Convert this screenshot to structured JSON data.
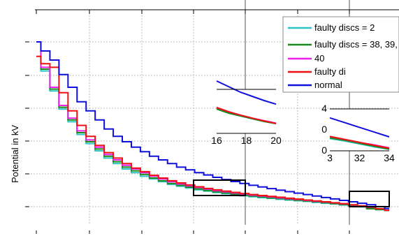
{
  "chart_data": {
    "type": "line",
    "title": "",
    "xlabel": "",
    "ylabel": "Potential in kV",
    "grid": true,
    "legend_position": "top-right",
    "x": [
      1,
      2,
      3,
      4,
      5,
      6,
      7,
      8,
      9,
      10,
      11,
      12,
      13,
      14,
      15,
      16,
      17,
      18,
      19,
      20,
      21,
      22,
      23,
      24,
      25,
      26,
      27,
      28,
      29,
      30,
      31,
      32,
      33,
      34,
      35,
      36,
      37,
      38,
      39,
      40
    ],
    "series": [
      {
        "name": "faulty discs = 2",
        "color": "#2ec4c4",
        "values": [
          100,
          84,
          73,
          63,
          56,
          49,
          44,
          40,
          36,
          33,
          30,
          28,
          26,
          24.5,
          23,
          21.5,
          20.5,
          19.5,
          18.5,
          17.8,
          17,
          16.4,
          15.8,
          15.2,
          14.7,
          14.2,
          13.8,
          13.3,
          12.9,
          12.5,
          12.1,
          11.6,
          11.1,
          10.7,
          10.2,
          9.7,
          9.2,
          8.6,
          7.9,
          7.2
        ]
      },
      {
        "name": "faulty discs = 38, 39, 40",
        "color": "#1a8a1a",
        "values": [
          100,
          85,
          74,
          64,
          57,
          50,
          45,
          41,
          37,
          34,
          31,
          29,
          27,
          25,
          23.5,
          22,
          21,
          20,
          19,
          18.2,
          17.4,
          16.8,
          16.2,
          15.6,
          15.1,
          14.6,
          14.1,
          13.7,
          13.2,
          12.8,
          12.4,
          11.9,
          11.4,
          10.9,
          10.4,
          9.8,
          9.3,
          8.1,
          7.6,
          7.2
        ]
      },
      {
        "name": "",
        "color": "#ee1fee",
        "values": [
          100,
          86,
          75,
          65,
          58,
          51,
          46,
          42,
          38,
          35,
          32,
          30,
          28,
          26,
          24.5,
          23,
          21.8,
          20.7,
          19.8,
          18.9,
          18.1,
          17.4,
          16.8,
          16.2,
          15.6,
          15.1,
          14.6,
          14.1,
          13.6,
          13.2,
          12.7,
          12.2,
          11.8,
          11.3,
          10.8,
          10.2,
          9.6,
          8.9,
          8.1,
          7.3
        ]
      },
      {
        "name": "",
        "color": "#ee1111",
        "values": [
          92,
          88,
          86,
          72,
          62,
          54,
          48,
          43,
          39,
          36,
          33,
          30.5,
          28.5,
          26.5,
          25,
          23.5,
          22.3,
          21.2,
          20.2,
          19.3,
          18.5,
          17.8,
          17.1,
          16.5,
          15.9,
          15.4,
          14.9,
          14.4,
          13.9,
          13.4,
          12.9,
          12.4,
          11.9,
          11.4,
          10.9,
          10.3,
          9.7,
          9.0,
          8.1,
          7.2
        ]
      },
      {
        "name": "normal",
        "color": "#1010dd",
        "values": [
          100,
          95,
          90,
          82,
          75,
          67,
          62,
          57,
          52,
          48,
          45,
          42,
          39.5,
          37,
          35,
          33,
          31,
          29.5,
          28,
          26.7,
          25.4,
          24.2,
          23.1,
          22,
          21,
          20.1,
          19.2,
          18.3,
          17.5,
          16.7,
          15.9,
          15.1,
          14.3,
          13.5,
          12.7,
          11.9,
          11.1,
          10.3,
          9.3,
          8.2
        ]
      }
    ],
    "legend": {
      "visible_labels": [
        "faulty discs = 2",
        "faulty discs = 38, 39,",
        "40",
        "faulty di",
        "normal"
      ]
    },
    "insets": [
      {
        "name": "inset-left",
        "x_range": [
          15,
          20
        ],
        "x_ticks": [
          "16",
          "18",
          "20"
        ],
        "y_ticks": []
      },
      {
        "name": "inset-right",
        "x_range": [
          30,
          34
        ],
        "x_ticks": [
          "3",
          "32",
          "34"
        ],
        "y_ticks": [
          "4",
          "0",
          "0"
        ]
      }
    ],
    "zoom_boxes": [
      {
        "x_range": [
          15,
          20
        ]
      },
      {
        "x_range": [
          32,
          36
        ]
      }
    ]
  }
}
